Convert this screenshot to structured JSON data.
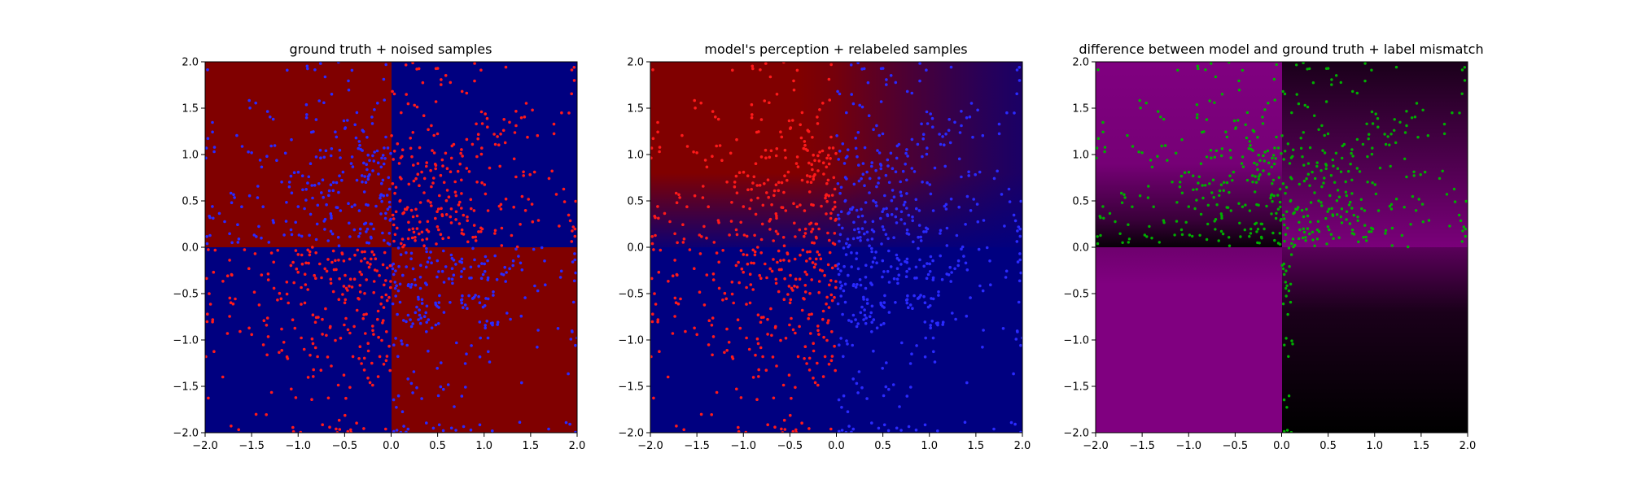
{
  "chart_data": [
    {
      "type": "heatmap",
      "title": "ground truth + noised samples",
      "xlim": [
        -2.0,
        2.0
      ],
      "ylim": [
        -2.0,
        2.0
      ],
      "x_ticks": [
        "−2.0",
        "−1.5",
        "−1.0",
        "−0.5",
        "0.0",
        "0.5",
        "1.0",
        "1.5",
        "2.0"
      ],
      "y_ticks": [
        "−2.0",
        "−1.5",
        "−1.0",
        "−0.5",
        "0.0",
        "0.5",
        "1.0",
        "1.5",
        "2.0"
      ],
      "background": "xor quadrants: red where x<0,y>0 and x>0,y<0; blue elsewhere",
      "background_colors": {
        "red": "#800000",
        "blue": "#000080"
      },
      "sample_colors": {
        "red": "#ff1a1a",
        "blue": "#2a2aff"
      },
      "samples": {
        "approx_count": 1000,
        "red_region": "x<0,y<0 and x>0,y>0",
        "blue_region": "x<0,y>0 and x>0,y<0"
      }
    },
    {
      "type": "heatmap",
      "title": "model's perception + relabeled samples",
      "xlim": [
        -2.0,
        2.0
      ],
      "ylim": [
        -2.0,
        2.0
      ],
      "x_ticks": [
        "−2.0",
        "−1.5",
        "−1.0",
        "−0.5",
        "0.0",
        "0.5",
        "1.0",
        "1.5",
        "2.0"
      ],
      "y_ticks": [
        "−2.0",
        "−1.5",
        "−1.0",
        "−0.5",
        "0.0",
        "0.5",
        "1.0",
        "1.5",
        "2.0"
      ],
      "background": "upper half red fading toward blue at top-right; lower half blue",
      "background_colors": {
        "red": "#800000",
        "blue": "#000080"
      },
      "sample_colors": {
        "red": "#ff1a1a",
        "blue": "#2a2aff"
      },
      "samples": {
        "approx_count": 1000,
        "red_region": "x<0",
        "blue_region": "x>0"
      }
    },
    {
      "type": "heatmap",
      "title": "difference between model and ground truth + label mismatch",
      "xlim": [
        -2.0,
        2.0
      ],
      "ylim": [
        -2.0,
        2.0
      ],
      "x_ticks": [
        "−2.0",
        "−1.5",
        "−1.0",
        "−0.5",
        "0.0",
        "0.5",
        "1.0",
        "1.5",
        "2.0"
      ],
      "y_ticks": [
        "−2.0",
        "−1.5",
        "−1.0",
        "−0.5",
        "0.0",
        "0.5",
        "1.0",
        "1.5",
        "2.0"
      ],
      "background": "magenta/black difference map",
      "background_colors": {
        "magenta": "#800080",
        "black": "#000000"
      },
      "sample_colors": {
        "mismatch": "#00b000"
      },
      "samples": {
        "approx_count": 310,
        "region": "upper half plus thin strip near x=0 in lower right"
      }
    }
  ]
}
